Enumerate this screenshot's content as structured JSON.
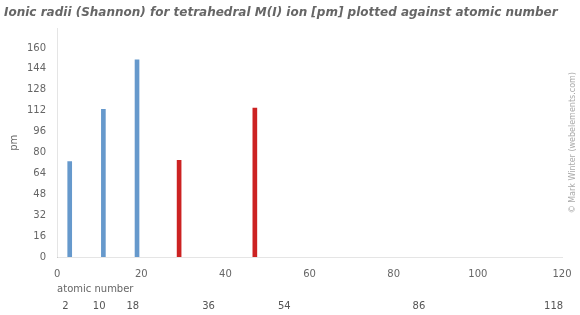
{
  "chart_data": {
    "type": "bar",
    "title": "Ionic radii (Shannon) for tetrahedral M(I) ion [pm] plotted against atomic number",
    "x_label": "atomic number",
    "y_label": "pm",
    "x": [
      3,
      11,
      19,
      29,
      47
    ],
    "values": [
      73,
      113,
      151,
      74,
      114
    ],
    "colors": [
      "#6699cc",
      "#6699cc",
      "#6699cc",
      "#cc2222",
      "#cc2222"
    ],
    "xlim": [
      0,
      120
    ],
    "xticks": [
      0,
      20,
      40,
      60,
      80,
      100,
      120
    ],
    "ylim": [
      0,
      175
    ],
    "yticks": [
      0,
      16,
      32,
      48,
      64,
      80,
      96,
      112,
      128,
      144,
      160
    ],
    "grid": false,
    "annotations": [
      {
        "x": 2,
        "text": "2"
      },
      {
        "x": 10,
        "text": "10"
      },
      {
        "x": 18,
        "text": "18"
      },
      {
        "x": 36,
        "text": "36"
      },
      {
        "x": 54,
        "text": "54"
      },
      {
        "x": 86,
        "text": "86"
      },
      {
        "x": 118,
        "text": "118"
      },
      {
        "text": "© Mark Winter (webelements.com)"
      }
    ]
  }
}
